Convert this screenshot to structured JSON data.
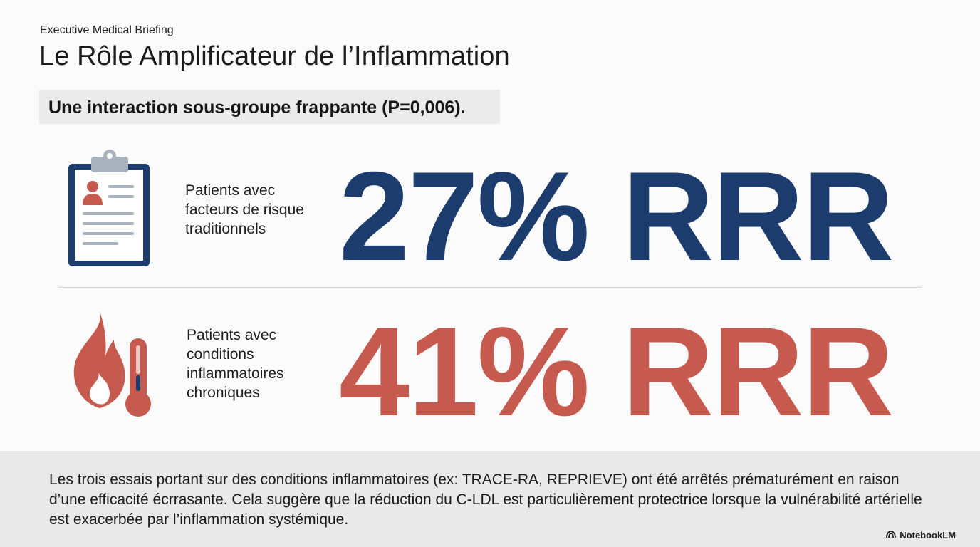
{
  "header": {
    "eyebrow": "Executive Medical Briefing",
    "title": "Le Rôle Amplificateur de l’Inflammation"
  },
  "callout": "Une interaction sous-groupe frappante (P=0,006).",
  "rows": [
    {
      "icon": "clipboard-icon",
      "label": "Patients avec facteurs de risque traditionnels",
      "stat": "27% RRR",
      "color": "#1d3c6e"
    },
    {
      "icon": "flame-thermometer-icon",
      "label": "Patients avec conditions inflammatoires chroniques",
      "stat": "41% RRR",
      "color": "#c65a4f"
    }
  ],
  "footer": {
    "text": "Les trois essais portant sur des conditions inflammatoires (ex: TRACE-RA, REPRIEVE) ont été arrêtés prématurément en raison d’une efficacité écrrasante. Cela suggère que la réduction du C-LDL est particulièrement protectrice lorsque la vulnérabilité artérielle est exacerbée par l’inflammation systémique.",
    "brand": "NotebookLM"
  }
}
